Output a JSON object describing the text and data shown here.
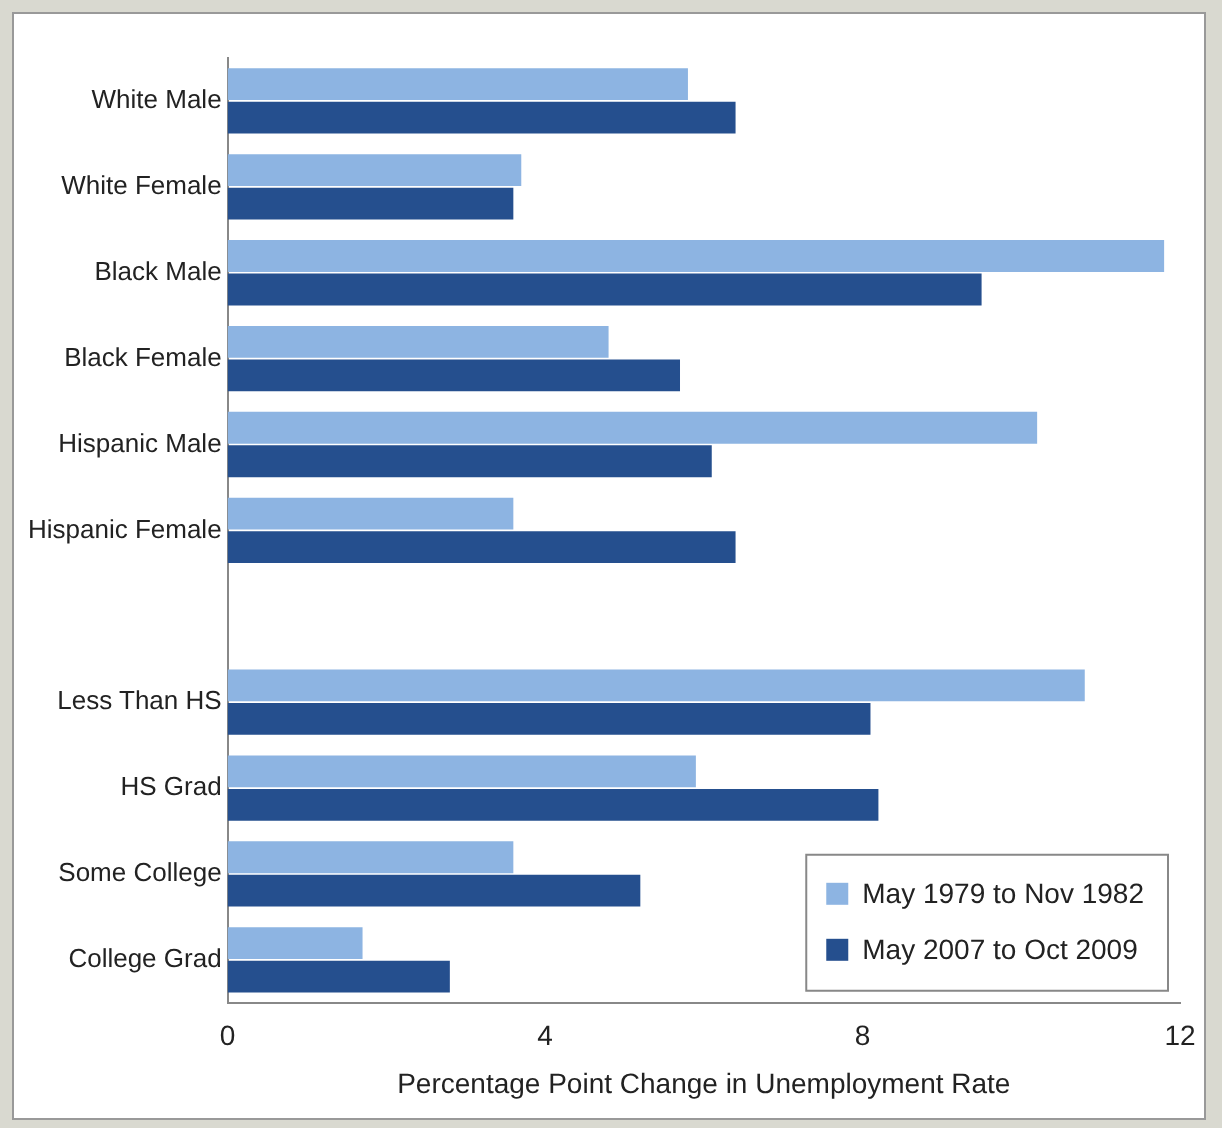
{
  "chart_data": {
    "type": "bar",
    "orientation": "horizontal",
    "xlabel": "Percentage Point Change in Unemployment Rate",
    "categories": [
      "White Male",
      "White Female",
      "Black Male",
      "Black Female",
      "Hispanic Male",
      "Hispanic Female",
      null,
      "Less Than HS",
      "HS Grad",
      "Some College",
      "College Grad"
    ],
    "series": [
      {
        "name": "May 1979 to Nov 1982",
        "color": "#8db4e2",
        "values": [
          5.8,
          3.7,
          11.8,
          4.8,
          10.2,
          3.6,
          null,
          10.8,
          5.9,
          3.6,
          1.7
        ]
      },
      {
        "name": "May 2007 to Oct 2009",
        "color": "#254f8e",
        "values": [
          6.4,
          3.6,
          9.5,
          5.7,
          6.1,
          6.4,
          null,
          8.1,
          8.2,
          5.2,
          2.8
        ]
      }
    ],
    "xlim": [
      0,
      12
    ],
    "xticks": [
      0,
      4,
      8,
      12
    ],
    "grid": false,
    "legend": "bottom right"
  }
}
